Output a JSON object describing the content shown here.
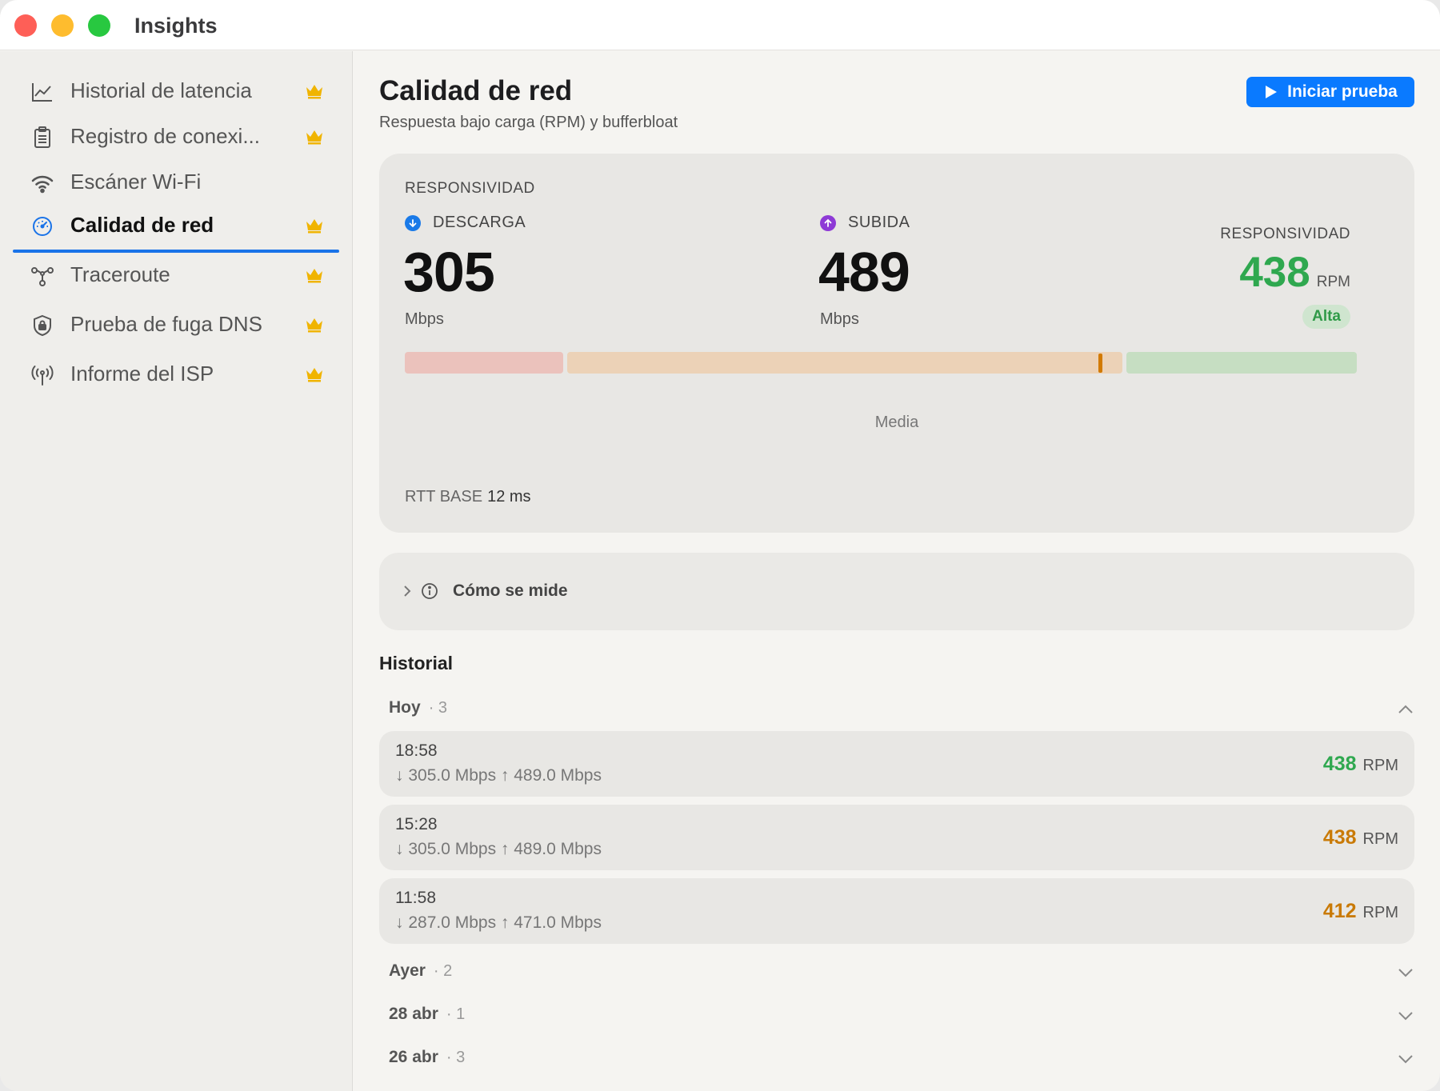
{
  "app": {
    "title": "Insights"
  },
  "sidebar": {
    "items": [
      {
        "label": "Historial de latencia",
        "icon": "line-chart-icon",
        "premium": true
      },
      {
        "label": "Registro de conexi...",
        "icon": "clipboard-icon",
        "premium": true
      },
      {
        "label": "Escáner Wi-Fi",
        "icon": "wifi-icon",
        "premium": false
      },
      {
        "label": "Calidad de red",
        "icon": "gauge-icon",
        "premium": true,
        "active": true
      },
      {
        "label": "Traceroute",
        "icon": "route-icon",
        "premium": true
      },
      {
        "label": "Prueba de fuga DNS",
        "icon": "shield-lock-icon",
        "premium": true
      },
      {
        "label": "Informe del ISP",
        "icon": "antenna-icon",
        "premium": true
      }
    ]
  },
  "page": {
    "title": "Calidad de red",
    "subtitle": "Respuesta bajo carga (RPM) y bufferbloat",
    "start_button": "Iniciar prueba"
  },
  "summary": {
    "section_label": "RESPONSIVIDAD",
    "download": {
      "label": "DESCARGA",
      "value": "305",
      "unit": "Mbps"
    },
    "upload": {
      "label": "SUBIDA",
      "value": "489",
      "unit": "Mbps"
    },
    "responsiveness": {
      "label": "RESPONSIVIDAD",
      "value": "438",
      "unit": "RPM",
      "badge": "Alta"
    },
    "bar": {
      "caption": "Media",
      "marker_fraction": 0.73
    },
    "rtt": {
      "label": "RTT BASE",
      "value": "12 ms"
    }
  },
  "how": {
    "label": "Cómo se mide"
  },
  "history": {
    "title": "Historial",
    "groups": [
      {
        "name": "Hoy",
        "count": "· 3",
        "expanded": true
      },
      {
        "name": "Ayer",
        "count": "· 2",
        "expanded": false
      },
      {
        "name": "28 abr",
        "count": "· 1",
        "expanded": false
      },
      {
        "name": "26 abr",
        "count": "· 3",
        "expanded": false
      }
    ],
    "entries": [
      {
        "time": "18:58",
        "speeds": "↓ 305.0 Mbps  ↑ 489.0 Mbps",
        "rpm": "438",
        "rpm_unit": "RPM",
        "color": "#2fa84f"
      },
      {
        "time": "15:28",
        "speeds": "↓ 305.0 Mbps  ↑ 489.0 Mbps",
        "rpm": "438",
        "rpm_unit": "RPM",
        "color": "#c97a06"
      },
      {
        "time": "11:58",
        "speeds": "↓ 287.0 Mbps  ↑ 471.0 Mbps",
        "rpm": "412",
        "rpm_unit": "RPM",
        "color": "#c97a06"
      }
    ]
  },
  "colors": {
    "accent": "#0a7aff",
    "good": "#2fa84f",
    "medium": "#c97a06",
    "crown": "#f0b400",
    "download": "#1a7ae8",
    "upload": "#8e3ad6"
  }
}
